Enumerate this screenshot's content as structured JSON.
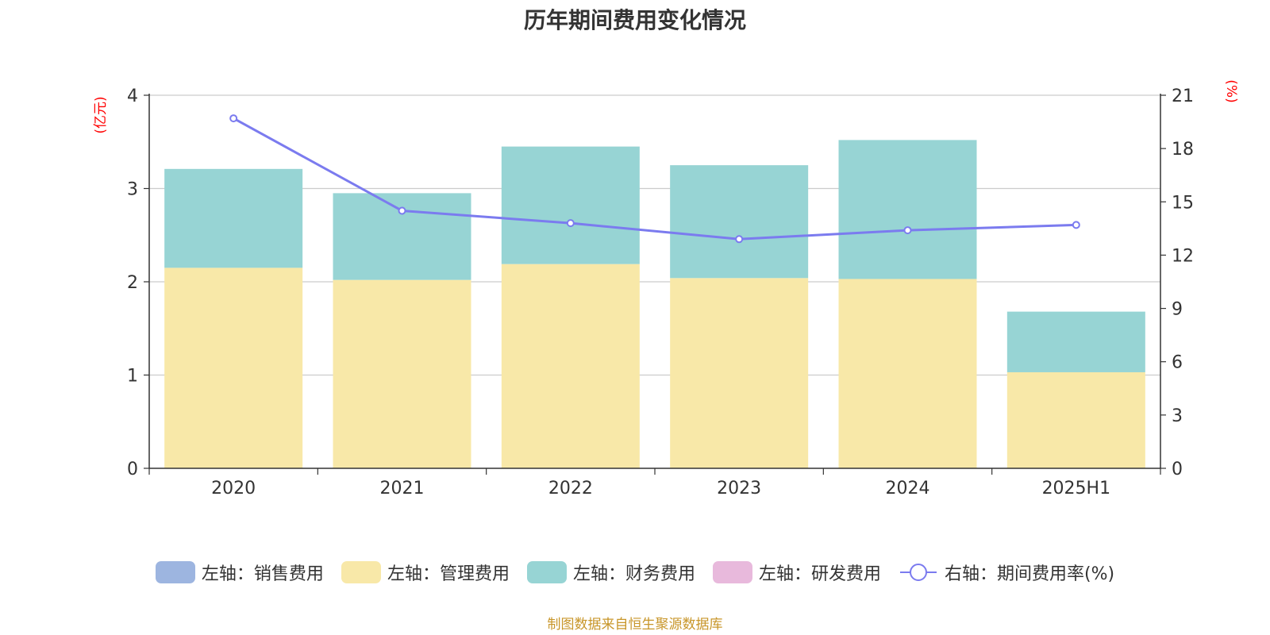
{
  "chart_data": {
    "type": "bar",
    "title": "历年期间费用变化情况",
    "categories": [
      "2020",
      "2021",
      "2022",
      "2023",
      "2024",
      "2025H1"
    ],
    "left_axis": {
      "unit_label": "(亿元)",
      "range": [
        0,
        4
      ],
      "ticks": [
        "0",
        "1",
        "2",
        "3",
        "4"
      ]
    },
    "right_axis": {
      "unit_label": "(%)",
      "range": [
        0,
        21
      ],
      "ticks": [
        "0",
        "3",
        "6",
        "9",
        "12",
        "15",
        "18",
        "21"
      ]
    },
    "grid": true,
    "stacked": true,
    "series": [
      {
        "name": "左轴：销售费用",
        "type": "bar",
        "axis": "left",
        "color": "#9db5e0",
        "values": [
          0,
          0,
          0,
          0,
          0,
          0
        ]
      },
      {
        "name": "左轴：管理费用",
        "type": "bar",
        "axis": "left",
        "color": "#f8e8a8",
        "values": [
          2.15,
          2.02,
          2.19,
          2.04,
          2.03,
          1.03
        ]
      },
      {
        "name": "左轴：财务费用",
        "type": "bar",
        "axis": "left",
        "color": "#97d4d4",
        "values": [
          1.06,
          0.93,
          1.26,
          1.21,
          1.49,
          0.65
        ]
      },
      {
        "name": "左轴：研发费用",
        "type": "bar",
        "axis": "left",
        "color": "#e8b9dc",
        "values": [
          0,
          0,
          0,
          0,
          0,
          0
        ]
      },
      {
        "name": "右轴：期间费用率(%)",
        "type": "line",
        "axis": "right",
        "color": "#7b7bef",
        "values": [
          19.7,
          14.5,
          13.8,
          12.9,
          13.4,
          13.7
        ]
      }
    ],
    "legend_position": "bottom",
    "source_note": "制图数据来自恒生聚源数据库"
  }
}
